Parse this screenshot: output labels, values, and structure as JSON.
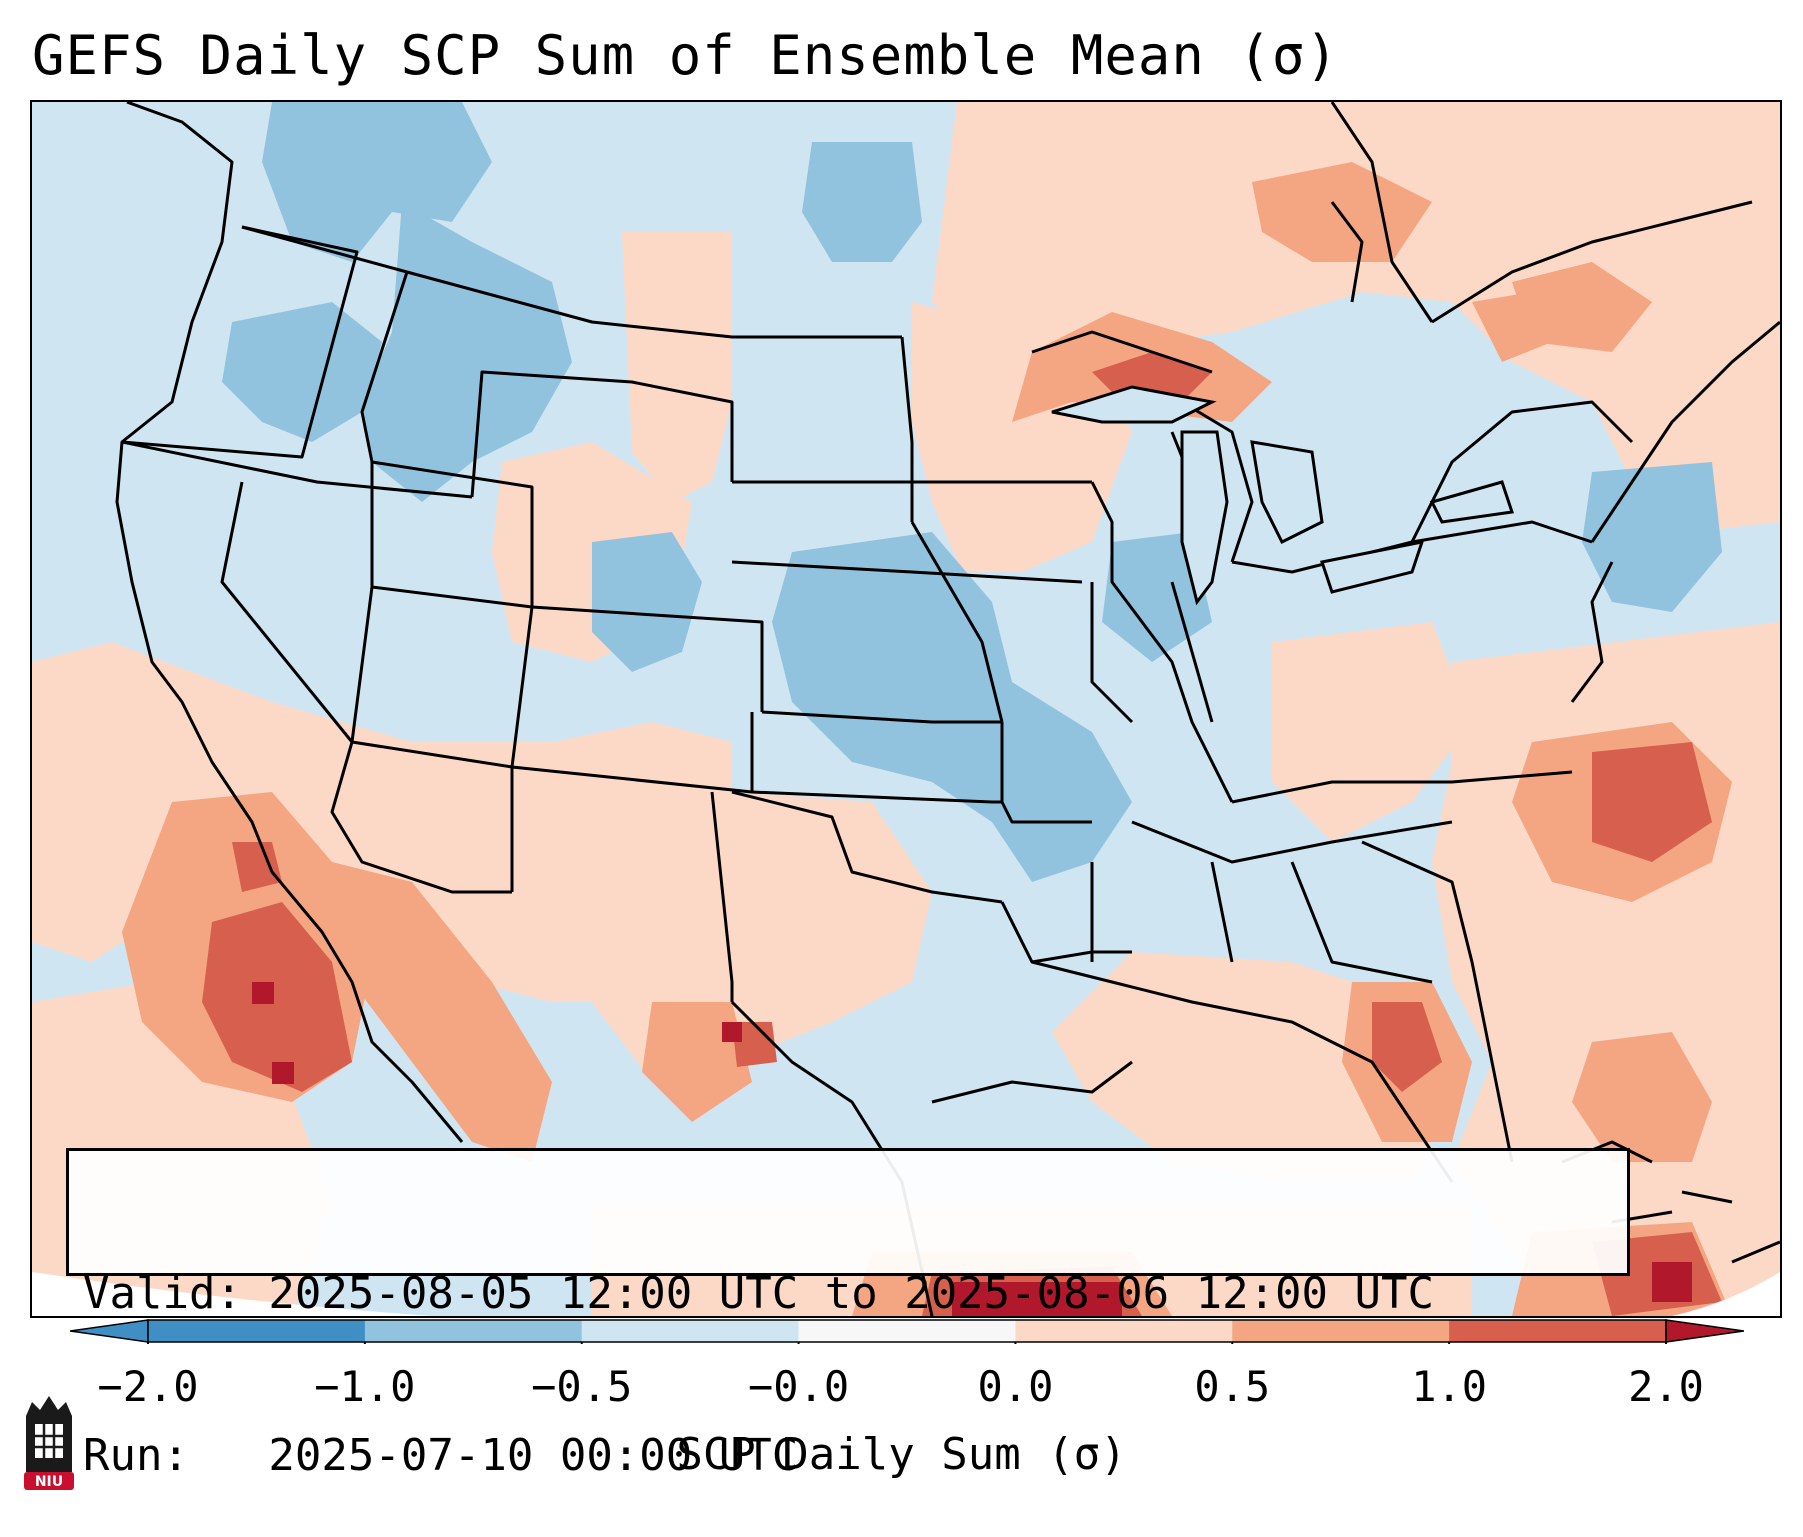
{
  "title": "GEFS Daily SCP Sum of Ensemble Mean (σ)",
  "info": {
    "valid": "Valid: 2025-08-05 12:00 UTC to 2025-08-06 12:00 UTC",
    "run": "Run:   2025-07-10 00:00 UTC"
  },
  "colorbar": {
    "label": "SCP Daily Sum (σ)",
    "ticks": [
      "−2.0",
      "−1.0",
      "−0.5",
      "−0.0",
      "0.0",
      "0.5",
      "1.0",
      "2.0"
    ],
    "bins": [
      {
        "name": "extend-low",
        "color": "#3f8fc5"
      },
      {
        "name": "-2.0 to -1.0",
        "color": "#3f8fc5"
      },
      {
        "name": "-1.0 to -0.5",
        "color": "#92c3de"
      },
      {
        "name": "-0.5 to -0.0",
        "color": "#d0e5f2"
      },
      {
        "name": "-0.0 to 0.0",
        "color": "#f7f7f7"
      },
      {
        "name": "0.0 to 0.5",
        "color": "#fcd9c7"
      },
      {
        "name": "0.5 to 1.0",
        "color": "#f4a683"
      },
      {
        "name": "1.0 to 2.0",
        "color": "#d6604d"
      },
      {
        "name": "extend-high",
        "color": "#b2182b"
      }
    ]
  },
  "colors": {
    "ocean_base": "#d0e5f2",
    "neg_moderate": "#92c3de",
    "pos_light": "#fcd9c7",
    "pos_moderate": "#f4a683",
    "pos_strong": "#d6604d",
    "pos_extreme": "#b2182b"
  },
  "logo": {
    "text": "NIU",
    "color": "#c8102e"
  }
}
